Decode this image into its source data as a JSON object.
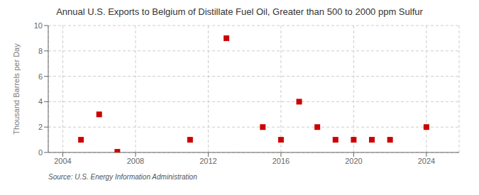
{
  "chart_data": {
    "type": "scatter",
    "title": "Annual U.S. Exports to Belgium of Distillate Fuel Oil, Greater than 500 to 2000 ppm Sulfur",
    "y_label": "Thousand Barrels per Day",
    "annotation": "Source: U.S. Energy Information Administration",
    "x": [
      2005,
      2006,
      2007,
      2011,
      2013,
      2015,
      2016,
      2017,
      2018,
      2019,
      2020,
      2021,
      2022,
      2024
    ],
    "values": [
      1,
      3,
      0.05,
      1,
      9,
      2,
      1,
      4,
      2,
      1,
      1,
      1,
      1,
      2
    ],
    "color": "#cc0000",
    "marker": "square",
    "xlim": [
      2003.2,
      2025.8
    ],
    "xticks": [
      2004,
      2008,
      2012,
      2016,
      2020,
      2024
    ],
    "ylim": [
      0,
      10
    ],
    "yticks": [
      0,
      2,
      4,
      6,
      8,
      10
    ],
    "grid": true
  }
}
